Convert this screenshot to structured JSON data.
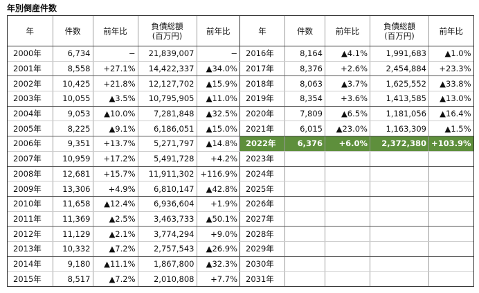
{
  "title": "年別倒産件数",
  "left_table": {
    "headers": [
      "年",
      "件数",
      "前年比",
      "負債総額\n(百万円)",
      "前年比"
    ],
    "rows": [
      [
        "2000年",
        "6,734",
        "−",
        "21,839,007",
        "−"
      ],
      [
        "2001年",
        "8,558",
        "+27.1%",
        "14,422,337",
        "▲34.0%"
      ],
      [
        "2002年",
        "10,425",
        "+21.8%",
        "12,127,702",
        "▲15.9%"
      ],
      [
        "2003年",
        "10,055",
        "▲3.5%",
        "10,795,905",
        "▲11.0%"
      ],
      [
        "2004年",
        "9,053",
        "▲10.0%",
        "7,281,848",
        "▲32.5%"
      ],
      [
        "2005年",
        "8,225",
        "▲9.1%",
        "6,186,051",
        "▲15.0%"
      ],
      [
        "2006年",
        "9,351",
        "+13.7%",
        "5,271,797",
        "▲14.8%"
      ],
      [
        "2007年",
        "10,959",
        "+17.2%",
        "5,491,728",
        "+4.2%"
      ],
      [
        "2008年",
        "12,681",
        "+15.7%",
        "11,911,302",
        "+116.9%"
      ],
      [
        "2009年",
        "13,306",
        "+4.9%",
        "6,810,147",
        "▲42.8%"
      ],
      [
        "2010年",
        "11,658",
        "▲12.4%",
        "6,936,604",
        "+1.9%"
      ],
      [
        "2011年",
        "11,369",
        "▲2.5%",
        "3,463,733",
        "▲50.1%"
      ],
      [
        "2012年",
        "11,129",
        "▲2.1%",
        "3,774,294",
        "+9.0%"
      ],
      [
        "2013年",
        "10,332",
        "▲7.2%",
        "2,757,543",
        "▲26.9%"
      ],
      [
        "2014年",
        "9,180",
        "▲11.1%",
        "1,867,800",
        "▲32.3%"
      ],
      [
        "2015年",
        "8,517",
        "▲7.2%",
        "2,010,808",
        "+7.7%"
      ]
    ]
  },
  "right_table": {
    "headers": [
      "年",
      "件数",
      "前年比",
      "負債総額\n(百万円)",
      "前年比"
    ],
    "highlight_row": 6,
    "highlight_color": "#5e8f3c",
    "rows": [
      [
        "2016年",
        "8,164",
        "▲4.1%",
        "1,991,683",
        "▲1.0%"
      ],
      [
        "2017年",
        "8,376",
        "+2.6%",
        "2,454,884",
        "+23.3%"
      ],
      [
        "2018年",
        "8,063",
        "▲3.7%",
        "1,625,552",
        "▲33.8%"
      ],
      [
        "2019年",
        "8,354",
        "+3.6%",
        "1,413,585",
        "▲13.0%"
      ],
      [
        "2020年",
        "7,809",
        "▲6.5%",
        "1,181,056",
        "▲16.4%"
      ],
      [
        "2021年",
        "6,015",
        "▲23.0%",
        "1,163,309",
        "▲1.5%"
      ],
      [
        "2022年",
        "6,376",
        "+6.0%",
        "2,372,380",
        "+103.9%"
      ],
      [
        "2023年"
      ],
      [
        "2024年"
      ],
      [
        "2025年"
      ],
      [
        "2026年"
      ],
      [
        "2027年"
      ],
      [
        "2028年"
      ],
      [
        "2029年"
      ],
      [
        "2030年"
      ],
      [
        "2031年"
      ]
    ]
  }
}
